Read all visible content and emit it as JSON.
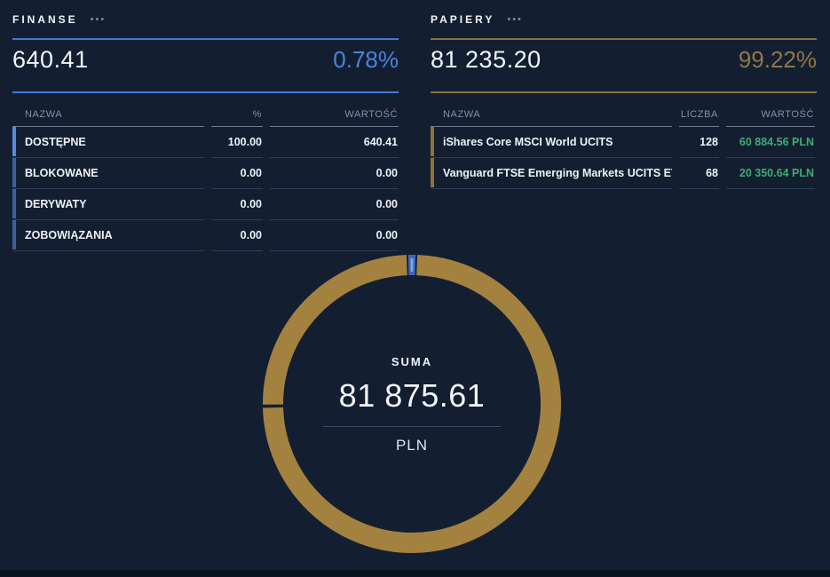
{
  "finanse": {
    "title": "FINANSE",
    "menu": "•••",
    "total": "640.41",
    "percent": "0.78%",
    "headers": {
      "name": "NAZWA",
      "percent": "%",
      "value": "WARTOŚĆ"
    },
    "rows": [
      {
        "name": "DOSTĘPNE",
        "percent": "100.00",
        "value": "640.41"
      },
      {
        "name": "BLOKOWANE",
        "percent": "0.00",
        "value": "0.00"
      },
      {
        "name": "DERYWATY",
        "percent": "0.00",
        "value": "0.00"
      },
      {
        "name": "ZOBOWIĄZANIA",
        "percent": "0.00",
        "value": "0.00"
      }
    ]
  },
  "papiery": {
    "title": "PAPIERY",
    "menu": "•••",
    "total": "81 235.20",
    "percent": "99.22%",
    "headers": {
      "name": "NAZWA",
      "count": "LICZBA",
      "value": "WARTOŚĆ"
    },
    "rows": [
      {
        "name": "iShares Core MSCI World UCITS",
        "count": "128",
        "value": "60 884.56 PLN"
      },
      {
        "name": "Vanguard FTSE Emerging Markets UCITS ET",
        "count": "68",
        "value": "20 350.64 PLN"
      }
    ]
  },
  "donut_center": {
    "label": "SUMA",
    "value": "81 875.61",
    "unit": "PLN"
  },
  "chart_data": {
    "type": "pie",
    "donut": true,
    "title": "SUMA 81 875.61 PLN",
    "total": 81875.61,
    "legend_position": "none",
    "series": [
      {
        "name": "FINANSE",
        "value": 640.41,
        "color": "#3d66bb",
        "inner_color": "#7aa3ec"
      },
      {
        "name": "iShares Core MSCI World UCITS",
        "value": 60884.56,
        "color": "#a3813f"
      },
      {
        "name": "Vanguard FTSE Emerging Markets UCITS ET",
        "value": 20350.64,
        "color": "#a3813f"
      }
    ]
  },
  "colors": {
    "background": "#131f31",
    "accent_blue": "#4479d4",
    "accent_gold": "#8a7142",
    "value_green": "#3fa973"
  }
}
